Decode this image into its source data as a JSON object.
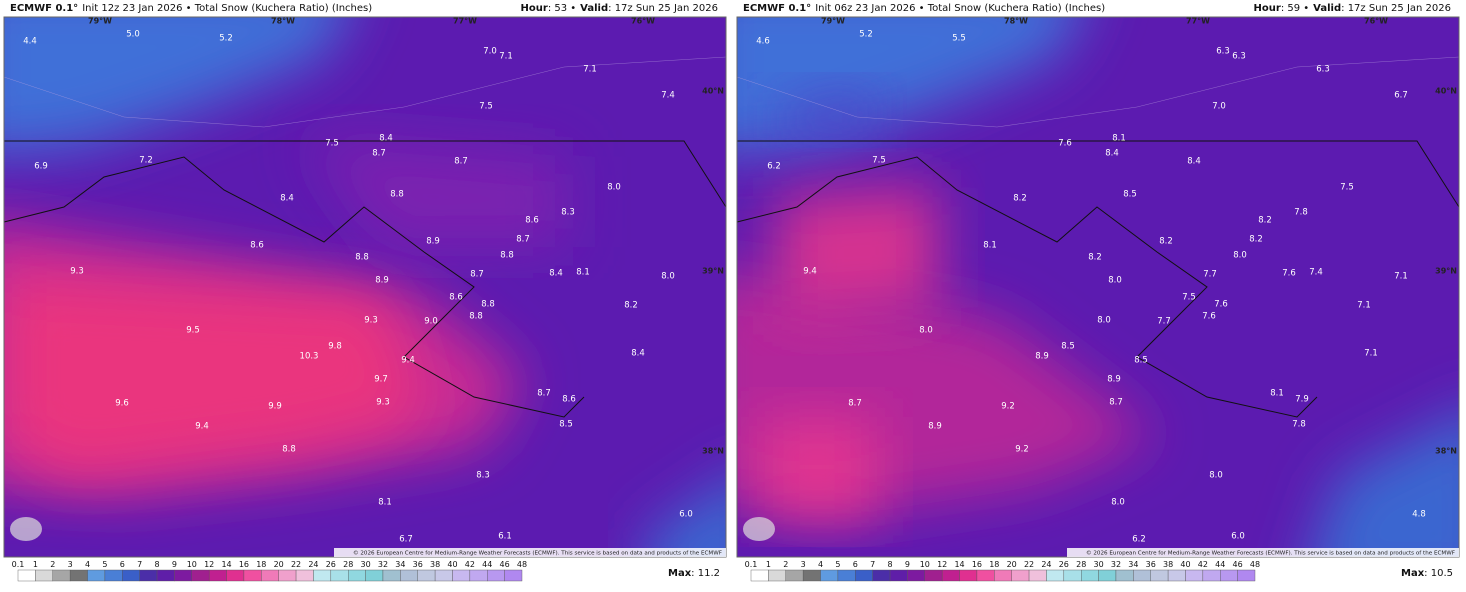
{
  "panels": [
    {
      "model": "ECMWF 0.1°",
      "subtitle": "Init 12z 23 Jan 2026 • Total Snow (Kuchera Ratio) (Inches)",
      "hour_label": "Hour",
      "hour_value": ": 53 •",
      "valid_label": "Valid",
      "valid_value": ": 17z Sun 25 Jan 2026",
      "lon_labels": [
        "79°W",
        "78°W",
        "77°W",
        "76°W"
      ],
      "lat_labels": [
        "40°N",
        "39°N",
        "38°N"
      ],
      "values": [
        "4.4",
        "5.0",
        "5.2",
        "7.0",
        "7.1",
        "7.1",
        "7.4",
        "7.5",
        "8.4",
        "7.5",
        "8.7",
        "8.7",
        "6.9",
        "7.2",
        "8.0",
        "8.8",
        "8.4",
        "8.6",
        "8.3",
        "8.9",
        "8.7",
        "8.6",
        "8.8",
        "8.8",
        "9.3",
        "8.7",
        "8.4",
        "8.1",
        "8.0",
        "8.9",
        "8.6",
        "8.8",
        "8.2",
        "8.8",
        "9.5",
        "9.3",
        "9.0",
        "9.8",
        "10.3",
        "8.4",
        "9.4",
        "9.7",
        "8.7",
        "8.6",
        "9.6",
        "9.9",
        "9.3",
        "9.4",
        "8.5",
        "8.8",
        "8.3",
        "8.1",
        "6.0",
        "6.7",
        "6.1"
      ],
      "credit": "© 2026 European Centre for Medium-Range Weather Forecasts (ECMWF). This service is based on data and products of the ECMWF",
      "max_label": "Max",
      "max_value": ": 11.2"
    },
    {
      "model": "ECMWF 0.1°",
      "subtitle": "Init 06z 23 Jan 2026 • Total Snow (Kuchera Ratio) (Inches)",
      "hour_label": "Hour",
      "hour_value": ": 59 •",
      "valid_label": "Valid",
      "valid_value": ": 17z Sun 25 Jan 2026",
      "lon_labels": [
        "79°W",
        "78°W",
        "77°W",
        "76°W"
      ],
      "lat_labels": [
        "40°N",
        "39°N",
        "38°N"
      ],
      "values": [
        "4.6",
        "5.2",
        "5.5",
        "6.3",
        "6.3",
        "6.3",
        "6.7",
        "7.0",
        "8.1",
        "7.6",
        "8.4",
        "8.4",
        "6.2",
        "7.5",
        "7.5",
        "8.5",
        "8.2",
        "8.2",
        "7.8",
        "8.2",
        "8.2",
        "8.1",
        "8.2",
        "8.0",
        "9.4",
        "7.7",
        "7.6",
        "7.4",
        "7.1",
        "8.0",
        "7.5",
        "7.6",
        "7.1",
        "7.6",
        "8.0",
        "8.0",
        "7.7",
        "8.5",
        "8.9",
        "7.1",
        "8.5",
        "8.9",
        "8.1",
        "7.9",
        "8.7",
        "9.2",
        "8.7",
        "8.9",
        "7.8",
        "9.2",
        "8.0",
        "8.0",
        "4.8",
        "6.2",
        "6.0"
      ],
      "credit": "© 2026 European Centre for Medium-Range Weather Forecasts (ECMWF). This service is based on data and products of the ECMWF",
      "max_label": "Max",
      "max_value": ": 10.5"
    }
  ],
  "colorbar": {
    "levels": [
      "0.1",
      "1",
      "2",
      "3",
      "4",
      "5",
      "6",
      "7",
      "8",
      "9",
      "10",
      "12",
      "14",
      "16",
      "18",
      "20",
      "22",
      "24",
      "26",
      "28",
      "30",
      "32",
      "34",
      "36",
      "38",
      "40",
      "42",
      "44",
      "46",
      "48"
    ],
    "colors": [
      "#ffffff",
      "#d9d9d9",
      "#a6a6a6",
      "#737373",
      "#5f9be0",
      "#4a7fd6",
      "#3a5fc8",
      "#4b2ea8",
      "#5f1ea8",
      "#7d1aa0",
      "#a0208f",
      "#c02090",
      "#e03090",
      "#f050a0",
      "#f07ab8",
      "#f0a0cc",
      "#f0c0dc",
      "#c0e8f0",
      "#a8e0e8",
      "#90d8e0",
      "#80d0d8",
      "#a0c0d0",
      "#b0c0d8",
      "#c0c8e0",
      "#c8c8e8",
      "#c8b8f0",
      "#c0a8f0",
      "#b898f0",
      "#b088f0"
    ]
  }
}
